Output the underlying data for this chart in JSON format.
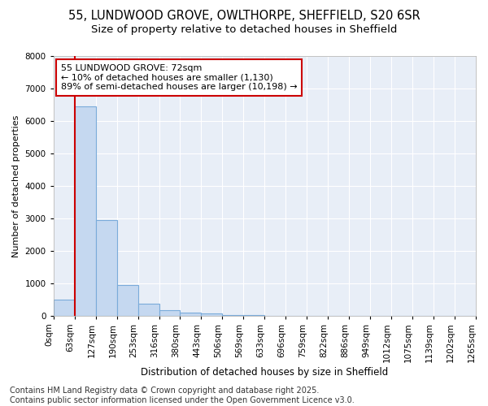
{
  "title1": "55, LUNDWOOD GROVE, OWLTHORPE, SHEFFIELD, S20 6SR",
  "title2": "Size of property relative to detached houses in Sheffield",
  "xlabel": "Distribution of detached houses by size in Sheffield",
  "ylabel": "Number of detached properties",
  "bin_labels": [
    "0sqm",
    "63sqm",
    "127sqm",
    "190sqm",
    "253sqm",
    "316sqm",
    "380sqm",
    "443sqm",
    "506sqm",
    "569sqm",
    "633sqm",
    "696sqm",
    "759sqm",
    "822sqm",
    "886sqm",
    "949sqm",
    "1012sqm",
    "1075sqm",
    "1139sqm",
    "1202sqm",
    "1265sqm"
  ],
  "bar_values": [
    500,
    6450,
    2950,
    950,
    360,
    160,
    100,
    55,
    10,
    5,
    2,
    1,
    0,
    0,
    0,
    0,
    0,
    0,
    0,
    0
  ],
  "bar_color": "#c5d8f0",
  "bar_edge_color": "#7aabda",
  "red_line_color": "#cc0000",
  "annotation_line1": "55 LUNDWOOD GROVE: 72sqm",
  "annotation_line2": "← 10% of detached houses are smaller (1,130)",
  "annotation_line3": "89% of semi-detached houses are larger (10,198) →",
  "annotation_box_color": "#ffffff",
  "annotation_box_edge": "#cc0000",
  "ylim": [
    0,
    8000
  ],
  "yticks": [
    0,
    1000,
    2000,
    3000,
    4000,
    5000,
    6000,
    7000,
    8000
  ],
  "figure_bg": "#ffffff",
  "plot_bg_color": "#e8eef7",
  "grid_color": "#ffffff",
  "footer": "Contains HM Land Registry data © Crown copyright and database right 2025.\nContains public sector information licensed under the Open Government Licence v3.0.",
  "title1_fontsize": 10.5,
  "title2_fontsize": 9.5,
  "xlabel_fontsize": 8.5,
  "ylabel_fontsize": 8.0,
  "tick_fontsize": 7.5,
  "annot_fontsize": 8.0,
  "footer_fontsize": 7.0
}
